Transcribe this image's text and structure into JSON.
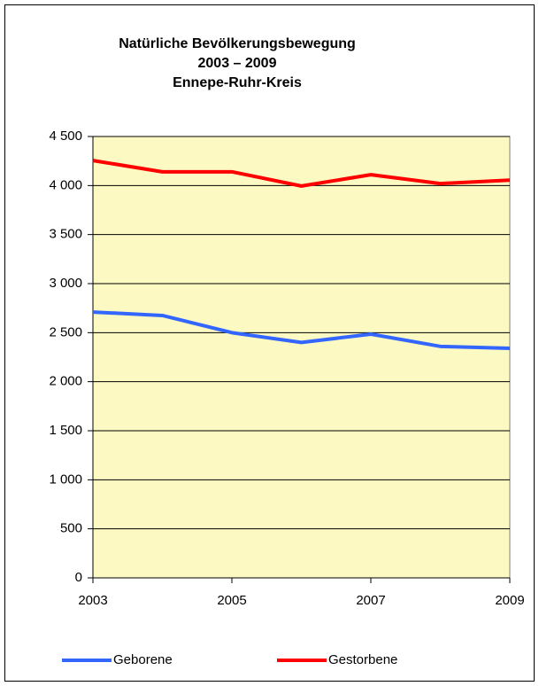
{
  "chart_data": {
    "type": "line",
    "title": [
      "Natürliche Bevölkerungsbewegung",
      "2003 – 2009",
      "Ennepe-Ruhr-Kreis"
    ],
    "x": [
      2003,
      2004,
      2005,
      2006,
      2007,
      2008,
      2009
    ],
    "xlim": [
      2003,
      2009
    ],
    "xticks": [
      2003,
      2005,
      2007,
      2009
    ],
    "ylim": [
      0,
      4500
    ],
    "yticks": [
      0,
      500,
      {
        "value": 1000,
        "label": "1 000"
      },
      {
        "value": 1500,
        "label": "1 500"
      },
      {
        "value": 2000,
        "label": "2 000"
      },
      {
        "value": 2500,
        "label": "2 500"
      },
      {
        "value": 3000,
        "label": "3 000"
      },
      {
        "value": 3500,
        "label": "3 500"
      },
      {
        "value": 4000,
        "label": "4 000"
      },
      {
        "value": 4500,
        "label": "4 500"
      }
    ],
    "grid": true,
    "legend": "bottom",
    "series": [
      {
        "name": "Geborene",
        "color": "#3366ff",
        "values": [
          2710,
          2675,
          2500,
          2400,
          2485,
          2360,
          2340
        ]
      },
      {
        "name": "Gestorbene",
        "color": "#ff0000",
        "values": [
          4255,
          4140,
          4140,
          3995,
          4110,
          4020,
          4055
        ]
      }
    ]
  }
}
